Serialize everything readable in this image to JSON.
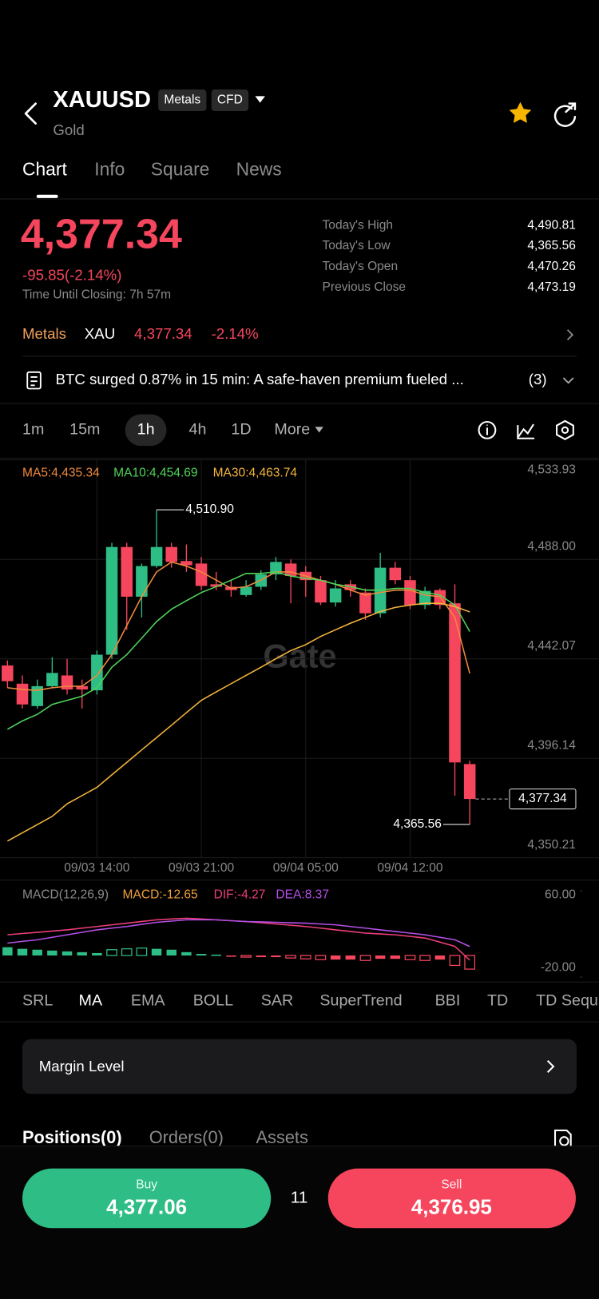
{
  "header": {
    "symbol": "XAUUSD",
    "badges": [
      "Metals",
      "CFD"
    ],
    "name": "Gold"
  },
  "tabs": [
    "Chart",
    "Info",
    "Square",
    "News"
  ],
  "quote": {
    "price": "4,377.34",
    "change": "-95.85(-2.14%)",
    "closing": "Time Until Closing: 7h 57m",
    "stats": [
      {
        "label": "Today's High",
        "value": "4,490.81"
      },
      {
        "label": "Today's Low",
        "value": "4,365.56"
      },
      {
        "label": "Today's Open",
        "value": "4,470.26"
      },
      {
        "label": "Previous Close",
        "value": "4,473.19"
      }
    ]
  },
  "ticker": {
    "market": "Metals",
    "asset": "XAU",
    "price": "4,377.34",
    "change": "-2.14%"
  },
  "news": {
    "text": "BTC surged 0.87% in 15 min: A safe-haven premium fueled ...",
    "count": "(3)"
  },
  "intervals": [
    "1m",
    "15m",
    "1h",
    "4h",
    "1D",
    "More"
  ],
  "chart": {
    "type": "candlestick",
    "watermark": "Gate",
    "up_color": "#2ebd85",
    "down_color": "#f6465d",
    "categories": [
      null,
      null,
      null,
      null,
      null,
      null,
      "09/03 14:00",
      null,
      null,
      null,
      null,
      null,
      null,
      "09/03 21:00",
      null,
      null,
      null,
      null,
      null,
      null,
      "09/04 05:00",
      null,
      null,
      null,
      null,
      null,
      null,
      "09/04 12:00",
      null,
      null,
      null,
      null
    ],
    "candles": [
      {
        "open": 4439.0,
        "high": 4441.29,
        "low": 4428.66,
        "close": 4431.73
      },
      {
        "open": 4430.58,
        "high": 4434.4,
        "low": 4419.1,
        "close": 4421.01
      },
      {
        "open": 4420.24,
        "high": 4432.49,
        "low": 4419.1,
        "close": 4429.43
      },
      {
        "open": 4429.43,
        "high": 4442.82,
        "low": 4428.66,
        "close": 4435.55
      },
      {
        "open": 4434.4,
        "high": 4442.06,
        "low": 4425.6,
        "close": 4427.9
      },
      {
        "open": 4429.43,
        "high": 4432.49,
        "low": 4419.1,
        "close": 4427.9
      },
      {
        "open": 4427.52,
        "high": 4445.89,
        "low": 4425.6,
        "close": 4443.97
      },
      {
        "open": 4443.97,
        "high": 4495.64,
        "low": 4442.06,
        "close": 4493.72
      },
      {
        "open": 4493.72,
        "high": 4495.64,
        "low": 4455.45,
        "close": 4470.76
      },
      {
        "open": 4470.76,
        "high": 4486.07,
        "low": 4461.19,
        "close": 4484.92
      },
      {
        "open": 4484.92,
        "high": 4510.9,
        "low": 4484.15,
        "close": 4493.72
      },
      {
        "open": 4493.72,
        "high": 4495.64,
        "low": 4484.15,
        "close": 4486.83
      },
      {
        "open": 4487.22,
        "high": 4494.87,
        "low": 4482.24,
        "close": 4485.3
      },
      {
        "open": 4486.07,
        "high": 4489.13,
        "low": 4473.82,
        "close": 4475.74
      },
      {
        "open": 4476.5,
        "high": 4482.24,
        "low": 4473.82,
        "close": 4475.35
      },
      {
        "open": 4475.35,
        "high": 4478.41,
        "low": 4470.76,
        "close": 4473.82
      },
      {
        "open": 4471.53,
        "high": 4478.41,
        "low": 4470.76,
        "close": 4475.35
      },
      {
        "open": 4475.35,
        "high": 4483.01,
        "low": 4473.82,
        "close": 4481.09
      },
      {
        "open": 4481.09,
        "high": 4489.13,
        "low": 4478.41,
        "close": 4486.83
      },
      {
        "open": 4486.07,
        "high": 4487.98,
        "low": 4467.7,
        "close": 4480.33
      },
      {
        "open": 4482.24,
        "high": 4484.92,
        "low": 4470.76,
        "close": 4478.41
      },
      {
        "open": 4478.41,
        "high": 4480.33,
        "low": 4466.93,
        "close": 4468.08
      },
      {
        "open": 4468.08,
        "high": 4478.41,
        "low": 4466.17,
        "close": 4474.59
      },
      {
        "open": 4476.5,
        "high": 4478.41,
        "low": 4470.76,
        "close": 4473.82
      },
      {
        "open": 4472.67,
        "high": 4474.59,
        "low": 4460.04,
        "close": 4463.11
      },
      {
        "open": 4463.11,
        "high": 4491.04,
        "low": 4461.19,
        "close": 4484.15
      },
      {
        "open": 4484.15,
        "high": 4486.83,
        "low": 4476.5,
        "close": 4478.41
      },
      {
        "open": 4478.41,
        "high": 4480.33,
        "low": 4465.02,
        "close": 4466.93
      },
      {
        "open": 4466.93,
        "high": 4475.35,
        "low": 4465.02,
        "close": 4473.44
      },
      {
        "open": 4473.82,
        "high": 4474.59,
        "low": 4465.02,
        "close": 4466.93
      },
      {
        "open": 4467.7,
        "high": 4476.5,
        "low": 4378.91,
        "close": 4394.22
      },
      {
        "open": 4393.46,
        "high": 4394.99,
        "low": 4365.56,
        "close": 4377.34
      }
    ],
    "ma": [
      {
        "label": "MA5:4,435.34",
        "color": "#f08a3c",
        "values": [
          4428.7,
          4427.9,
          4427.5,
          4428.7,
          4429.4,
          4429.4,
          4434.4,
          4444.0,
          4457.4,
          4470.8,
          4482.2,
          4486.8,
          4484.9,
          4482.2,
          4478.4,
          4474.6,
          4475.4,
          4478.4,
          4482.2,
          4482.2,
          4480.3,
          4478.4,
          4476.5,
          4473.8,
          4471.5,
          4472.7,
          4473.8,
          4473.8,
          4471.5,
          4470.8,
          4461.2,
          4435.34
        ]
      },
      {
        "label": "MA10:4,454.69",
        "color": "#4fd45a",
        "values": [
          4409.5,
          4413.4,
          4416.4,
          4421.0,
          4422.9,
          4424.8,
          4428.7,
          4438.2,
          4444.0,
          4451.6,
          4459.3,
          4465.0,
          4468.9,
          4472.7,
          4475.4,
          4478.4,
          4481.5,
          4481.5,
          4482.2,
          4480.3,
          4479.2,
          4478.4,
          4476.5,
          4475.4,
          4473.8,
          4473.8,
          4474.6,
          4474.6,
          4472.7,
          4471.5,
          4466.9,
          4454.69
        ]
      },
      {
        "label": "MA30:4,463.74",
        "color": "#f5b53c",
        "values": [
          4357.9,
          4361.7,
          4365.5,
          4369.3,
          4375.1,
          4378.9,
          4382.7,
          4388.5,
          4394.2,
          4400.0,
          4405.7,
          4411.4,
          4417.2,
          4422.9,
          4426.8,
          4430.6,
          4434.4,
          4438.2,
          4442.1,
          4445.9,
          4448.6,
          4452.4,
          4455.5,
          4458.5,
          4461.2,
          4463.9,
          4465.8,
          4466.9,
          4467.7,
          4467.7,
          4466.2,
          4463.74
        ]
      }
    ],
    "ylim": [
      4350.21,
      4533.93
    ],
    "yticks": [
      {
        "value": 4533.93,
        "label": "4,533.93"
      },
      {
        "value": 4488.0,
        "label": "4,488.00"
      },
      {
        "value": 4442.07,
        "label": "4,442.07"
      },
      {
        "value": 4396.14,
        "label": "4,396.14"
      },
      {
        "value": 4350.21,
        "label": "4,350.21"
      }
    ],
    "grid": true,
    "high_marker": {
      "value": 4510.9,
      "label": "4,510.90"
    },
    "low_marker": {
      "value": 4365.56,
      "label": "4,365.56"
    },
    "last_price": {
      "value": 4377.34,
      "label": "4,377.34"
    }
  },
  "macd": {
    "title": "MACD(12,26,9)",
    "legend": [
      {
        "label": "MACD:-12.65",
        "color": "#f0a03c"
      },
      {
        "label": "DIF:-4.27",
        "color": "#ec3f7a"
      },
      {
        "label": "DEA:8.37",
        "color": "#b44fe8"
      }
    ],
    "histogram": [
      7.7,
      6.2,
      5.4,
      4.6,
      3.8,
      3.1,
      2.3,
      5.4,
      6.2,
      6.9,
      6.2,
      5.4,
      3.1,
      1.5,
      0.8,
      -0.8,
      -1.5,
      -1.5,
      -1.5,
      -2.3,
      -3.1,
      -3.8,
      -3.8,
      -3.8,
      -4.6,
      -3.1,
      -3.1,
      -3.8,
      -4.6,
      -3.8,
      -9.2,
      -12.65
    ],
    "dif": [
      19.2,
      20.4,
      21.5,
      22.7,
      23.8,
      25.4,
      26.9,
      28.5,
      30.0,
      31.6,
      33.1,
      33.9,
      34.6,
      33.9,
      33.1,
      32.3,
      31.5,
      30.4,
      29.2,
      28.1,
      26.9,
      25.4,
      23.8,
      22.3,
      20.8,
      20.0,
      19.2,
      17.7,
      16.2,
      12.4,
      8.5,
      -4.27
    ],
    "dea": [
      11.5,
      13.1,
      14.6,
      16.9,
      19.2,
      21.5,
      23.8,
      25.4,
      26.9,
      28.9,
      30.8,
      31.9,
      33.1,
      33.1,
      33.1,
      32.3,
      31.5,
      31.2,
      30.8,
      30.4,
      30.0,
      29.2,
      28.5,
      26.9,
      25.4,
      23.8,
      22.3,
      20.8,
      19.2,
      16.9,
      14.6,
      8.37
    ],
    "ylim": [
      -20,
      60
    ],
    "yticks": [
      {
        "value": 60,
        "label": "60.00"
      },
      {
        "value": -20,
        "label": "-20.00"
      }
    ]
  },
  "indicators": [
    "SRL",
    "MA",
    "EMA",
    "BOLL",
    "SAR",
    "SuperTrend",
    "BBI",
    "TD",
    "TD Sequ"
  ],
  "margin": "Margin Level",
  "account_tabs": [
    "Positions(0)",
    "Orders(0)",
    "Assets"
  ],
  "trade": {
    "buy_label": "Buy",
    "buy_price": "4,377.06",
    "spread": "11",
    "sell_label": "Sell",
    "sell_price": "4,376.95"
  }
}
